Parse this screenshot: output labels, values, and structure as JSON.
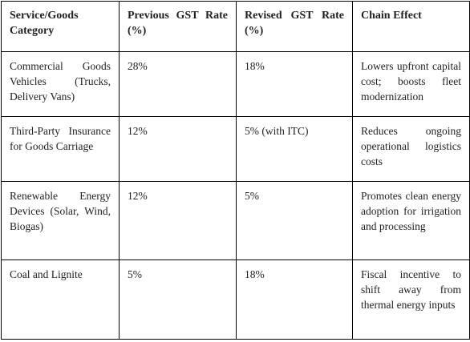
{
  "table": {
    "headers": [
      "Service/Goods Category",
      "Previous GST Rate (%)",
      "Revised GST Rate (%)",
      "Chain Effect"
    ],
    "rows": [
      [
        "Commercial Goods Vehicles (Trucks, Delivery Vans)",
        "28%",
        "18%",
        "Lowers upfront capital cost; boosts fleet modernization"
      ],
      [
        "Third-Party Insurance for Goods Carriage",
        "12%",
        "5% (with ITC)",
        "Reduces ongoing operational logistics costs"
      ],
      [
        "Renewable Energy Devices (Solar, Wind, Biogas)",
        "12%",
        "5%",
        "Promotes clean energy adoption for irrigation and processing"
      ],
      [
        "Coal and Lignite",
        "5%",
        "18%",
        "Fiscal incentive to shift away from thermal energy inputs"
      ]
    ]
  }
}
